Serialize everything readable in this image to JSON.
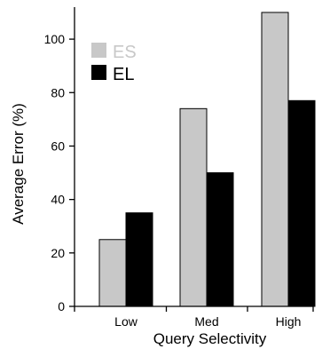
{
  "chart_data": {
    "type": "bar",
    "categories": [
      "Low",
      "Med",
      "High"
    ],
    "series": [
      {
        "name": "ES",
        "values": [
          25,
          74,
          110
        ],
        "color": "#c8c8c8",
        "label_color": "#c8c8c8"
      },
      {
        "name": "EL",
        "values": [
          35,
          50,
          77
        ],
        "color": "#000000",
        "label_color": "#000000"
      }
    ],
    "xlabel": "Query Selectivity",
    "ylabel": "Average Error (%)",
    "ylim": [
      0,
      110
    ],
    "yticks": [
      0,
      20,
      40,
      60,
      80,
      100
    ],
    "grid": false,
    "legend_position": "top-left"
  }
}
